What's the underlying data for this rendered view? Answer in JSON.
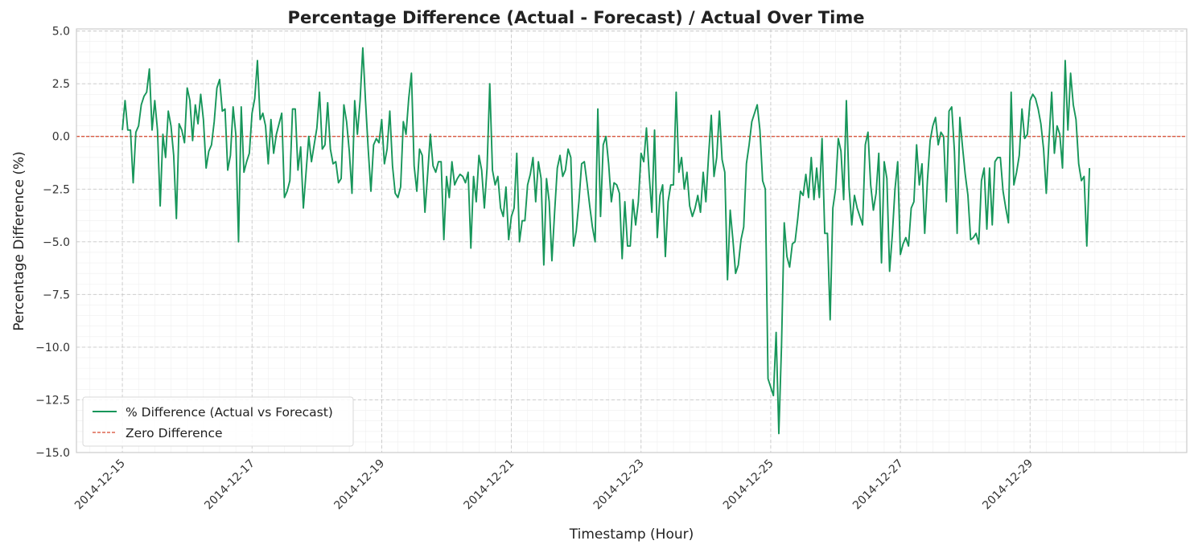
{
  "chart_data": {
    "type": "line",
    "title": "Percentage Difference (Actual - Forecast) / Actual Over Time",
    "xlabel": "Timestamp (Hour)",
    "ylabel": "Percentage Difference (%)",
    "ylim": [
      -15.0,
      5.1
    ],
    "xlim": [
      "2014-12-14T07:00",
      "2014-12-31T10:00"
    ],
    "y_ticks": [
      5.0,
      2.5,
      0.0,
      -2.5,
      -5.0,
      -7.5,
      -10.0,
      -12.5,
      -15.0
    ],
    "y_tick_labels": [
      "5.0",
      "2.5",
      "0.0",
      "−2.5",
      "−5.0",
      "−7.5",
      "−10.0",
      "−12.5",
      "−15.0"
    ],
    "x_ticks": [
      "2014-12-15",
      "2014-12-17",
      "2014-12-19",
      "2014-12-21",
      "2014-12-23",
      "2014-12-25",
      "2014-12-27",
      "2014-12-29"
    ],
    "x_tick_labels": [
      "2014-12-15",
      "2014-12-17",
      "2014-12-19",
      "2014-12-21",
      "2014-12-23",
      "2014-12-25",
      "2014-12-27",
      "2014-12-29"
    ],
    "grid": true,
    "minor_grid": true,
    "legend_position": "lower-left",
    "series": [
      {
        "name": "% Difference (Actual vs Forecast)",
        "color": "#17965a",
        "x_start": "2014-12-15T00:00",
        "step_hours": 1,
        "values": [
          0.3,
          1.7,
          0.3,
          0.3,
          -2.2,
          0.2,
          0.5,
          1.5,
          1.9,
          2.1,
          3.2,
          0.3,
          1.7,
          0.3,
          -3.3,
          0.1,
          -1.0,
          1.2,
          0.5,
          -0.9,
          -3.9,
          0.6,
          0.3,
          -0.3,
          2.3,
          1.7,
          -0.2,
          1.5,
          0.6,
          2.0,
          0.8,
          -1.5,
          -0.7,
          -0.4,
          0.7,
          2.3,
          2.7,
          1.2,
          1.3,
          -1.6,
          -0.9,
          1.4,
          0.1,
          -5.0,
          1.4,
          -1.7,
          -1.2,
          -0.8,
          1.1,
          1.8,
          3.6,
          0.8,
          1.1,
          0.5,
          -1.3,
          0.8,
          -0.8,
          0.1,
          0.6,
          1.1,
          -2.9,
          -2.6,
          -2.1,
          1.3,
          1.3,
          -1.6,
          -0.5,
          -3.4,
          -1.7,
          0.0,
          -1.2,
          -0.4,
          0.4,
          2.1,
          -0.6,
          -0.4,
          1.6,
          -0.6,
          -1.3,
          -1.2,
          -2.2,
          -2.0,
          1.5,
          0.7,
          -0.7,
          -2.7,
          1.7,
          0.1,
          1.7,
          4.2,
          1.7,
          -0.6,
          -2.6,
          -0.4,
          -0.1,
          -0.3,
          0.8,
          -1.3,
          -0.6,
          1.2,
          -1.4,
          -2.7,
          -2.9,
          -2.4,
          0.7,
          0.1,
          1.8,
          3.0,
          -1.4,
          -2.6,
          -0.6,
          -0.9,
          -3.6,
          -1.8,
          0.1,
          -1.4,
          -1.7,
          -1.2,
          -1.2,
          -4.9,
          -1.9,
          -2.9,
          -1.2,
          -2.3,
          -2.0,
          -1.8,
          -1.9,
          -2.2,
          -1.7,
          -5.3,
          -1.9,
          -3.1,
          -0.9,
          -1.6,
          -3.4,
          -1.5,
          2.5,
          -1.6,
          -2.3,
          -1.9,
          -3.4,
          -3.8,
          -2.4,
          -4.9,
          -3.8,
          -3.4,
          -0.8,
          -5.0,
          -4.0,
          -4.0,
          -2.3,
          -1.8,
          -1.0,
          -3.1,
          -1.2,
          -2.0,
          -6.1,
          -2.0,
          -3.1,
          -5.9,
          -3.6,
          -1.5,
          -0.9,
          -1.9,
          -1.6,
          -0.6,
          -1.0,
          -5.2,
          -4.5,
          -3.1,
          -1.3,
          -1.2,
          -2.2,
          -3.3,
          -4.3,
          -5.0,
          1.3,
          -3.8,
          -0.4,
          0.0,
          -1.3,
          -3.1,
          -2.2,
          -2.3,
          -2.7,
          -5.8,
          -3.1,
          -5.2,
          -5.2,
          -3.0,
          -4.2,
          -3.1,
          -0.8,
          -1.2,
          0.4,
          -1.8,
          -3.6,
          0.3,
          -4.8,
          -2.8,
          -2.3,
          -5.7,
          -3.1,
          -2.3,
          -2.3,
          2.1,
          -1.7,
          -1.0,
          -2.5,
          -1.7,
          -3.3,
          -3.8,
          -3.4,
          -2.8,
          -3.6,
          -1.7,
          -3.1,
          -0.9,
          1.0,
          -1.9,
          -1.0,
          1.2,
          -1.1,
          -1.7,
          -6.8,
          -3.5,
          -4.9,
          -6.5,
          -6.1,
          -4.9,
          -4.3,
          -1.3,
          -0.4,
          0.7,
          1.1,
          1.5,
          0.3,
          -2.1,
          -2.5,
          -11.5,
          -11.9,
          -12.3,
          -9.3,
          -14.1,
          -9.9,
          -4.1,
          -5.7,
          -6.2,
          -5.1,
          -5.0,
          -3.9,
          -2.6,
          -2.8,
          -1.8,
          -2.9,
          -1.0,
          -3.0,
          -1.5,
          -2.9,
          -0.1,
          -4.6,
          -4.6,
          -8.7,
          -3.4,
          -2.5,
          -0.1,
          -0.7,
          -3.0,
          1.7,
          -2.4,
          -4.2,
          -2.8,
          -3.4,
          -3.8,
          -4.2,
          -0.4,
          0.2,
          -2.3,
          -3.5,
          -2.7,
          -0.8,
          -6.0,
          -1.2,
          -2.0,
          -6.4,
          -4.7,
          -2.5,
          -1.2,
          -5.6,
          -5.1,
          -4.8,
          -5.2,
          -3.4,
          -3.1,
          -0.4,
          -2.3,
          -1.3,
          -4.6,
          -2.1,
          -0.2,
          0.5,
          0.9,
          -0.4,
          0.2,
          0.0,
          -3.1,
          1.2,
          1.4,
          -0.7,
          -4.6,
          0.9,
          -0.5,
          -1.8,
          -2.8,
          -4.9,
          -4.8,
          -4.6,
          -5.1,
          -2.1,
          -1.5,
          -4.4,
          -1.5,
          -4.2,
          -1.2,
          -1.0,
          -1.0,
          -2.6,
          -3.4,
          -4.1,
          2.1,
          -2.3,
          -1.7,
          -0.9,
          1.3,
          -0.1,
          0.1,
          1.7,
          2.0,
          1.8,
          1.3,
          0.6,
          -0.6,
          -2.7,
          -0.2,
          2.1,
          -0.8,
          0.5,
          0.1,
          -1.5,
          3.6,
          0.3,
          3.0,
          1.5,
          0.8,
          -1.3,
          -2.1,
          -1.9,
          -5.2,
          -1.5
        ]
      },
      {
        "name": "Zero Difference",
        "color": "#d6472d",
        "style": "dashed",
        "constant": 0.0
      }
    ]
  }
}
